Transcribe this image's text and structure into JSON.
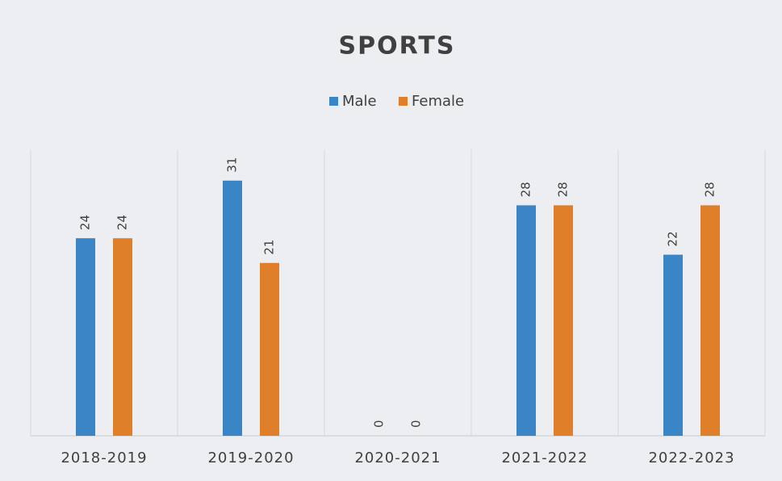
{
  "chart_data": {
    "type": "bar",
    "title": "SPORTS",
    "categories": [
      "2018-2019",
      "2019-2020",
      "2020-2021",
      "2021-2022",
      "2022-2023"
    ],
    "series": [
      {
        "name": "Male",
        "color": "#3a85c6",
        "values": [
          24,
          31,
          0,
          28,
          22
        ]
      },
      {
        "name": "Female",
        "color": "#e07f2a",
        "values": [
          24,
          21,
          0,
          28,
          28
        ]
      }
    ],
    "grid": true,
    "legend": "top"
  }
}
